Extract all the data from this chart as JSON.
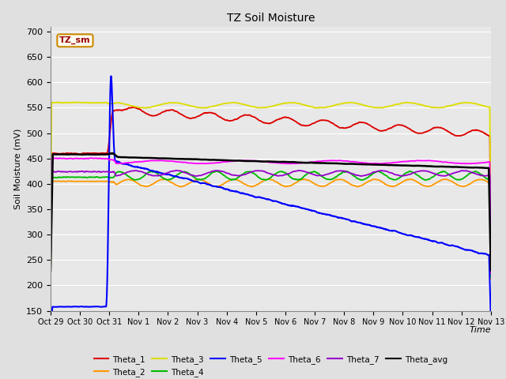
{
  "title": "TZ Soil Moisture",
  "xlabel": "Time",
  "ylabel": "Soil Moisture (mV)",
  "ylim": [
    150,
    710
  ],
  "yticks": [
    150,
    200,
    250,
    300,
    350,
    400,
    450,
    500,
    550,
    600,
    650,
    700
  ],
  "background_color": "#e0e0e0",
  "plot_bg_color": "#e8e8e8",
  "legend_label": "TZ_sm",
  "legend_box_facecolor": "#fffff0",
  "legend_box_edgecolor": "#cc8800",
  "series": {
    "Theta_1": {
      "color": "#dd0000",
      "lw": 1.3
    },
    "Theta_2": {
      "color": "#ff9900",
      "lw": 1.3
    },
    "Theta_3": {
      "color": "#dddd00",
      "lw": 1.3
    },
    "Theta_4": {
      "color": "#00bb00",
      "lw": 1.3
    },
    "Theta_5": {
      "color": "#0000ff",
      "lw": 1.5
    },
    "Theta_6": {
      "color": "#ff00ff",
      "lw": 1.3
    },
    "Theta_7": {
      "color": "#9900cc",
      "lw": 1.3
    },
    "Theta_avg": {
      "color": "#000000",
      "lw": 1.8
    }
  },
  "x_tick_labels": [
    "Oct 29",
    "Oct 30",
    "Oct 31",
    "Nov 1",
    "Nov 2",
    "Nov 3",
    "Nov 4",
    "Nov 5",
    "Nov 6",
    "Nov 7",
    "Nov 8",
    "Nov 9",
    "Nov 10",
    "Nov 11",
    "Nov 12",
    "Nov 13"
  ]
}
